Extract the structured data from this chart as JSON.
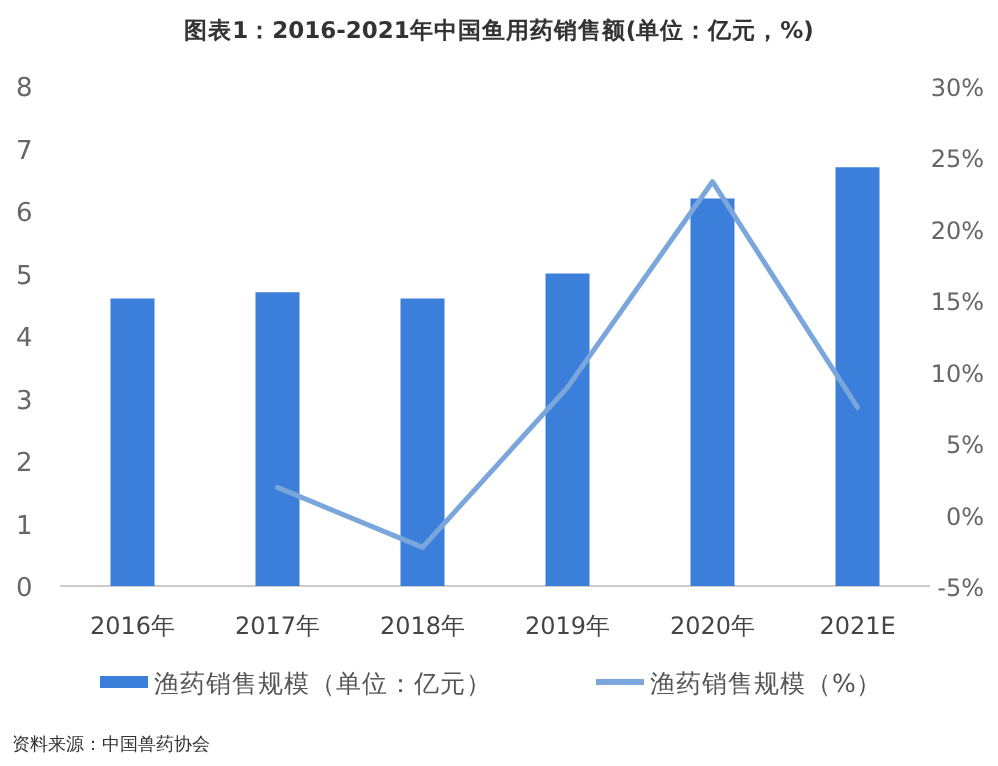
{
  "chart_data": {
    "type": "bar",
    "title": "图表1：2016-2021年中国鱼用药销售额(单位：亿元，%)",
    "categories": [
      "2016年",
      "2017年",
      "2018年",
      "2019年",
      "2020年",
      "2021E"
    ],
    "series": [
      {
        "name": "渔药销售规模（单位：亿元）",
        "type": "bar",
        "color": "#3b7fdb",
        "values": [
          4.6,
          4.7,
          4.6,
          5.0,
          6.2,
          6.7
        ]
      },
      {
        "name": "渔药销售规模（%）",
        "type": "line",
        "axis": "y2",
        "color": "#7aa6dc",
        "values": [
          null,
          1.9,
          -2.3,
          8.9,
          23.3,
          7.5
        ]
      }
    ],
    "ylim": [
      0,
      8
    ],
    "yticks": [
      0,
      1,
      2,
      3,
      4,
      5,
      6,
      7,
      8
    ],
    "y2lim": [
      -5,
      30
    ],
    "y2ticks": [
      {
        "value": -5,
        "label": "-5%"
      },
      {
        "value": 0,
        "label": "0%"
      },
      {
        "value": 5,
        "label": "5%"
      },
      {
        "value": 10,
        "label": "10%"
      },
      {
        "value": 15,
        "label": "15%"
      },
      {
        "value": 20,
        "label": "20%"
      },
      {
        "value": 25,
        "label": "25%"
      },
      {
        "value": 30,
        "label": "30%"
      }
    ],
    "legend": "bottom",
    "annotations": [
      "资料来源：中国兽药协会"
    ]
  }
}
